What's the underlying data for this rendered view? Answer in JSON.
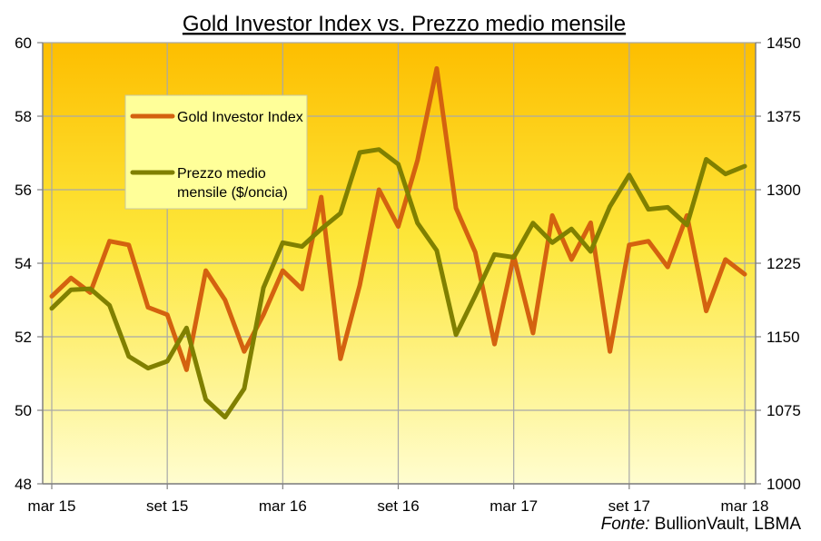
{
  "chart_data": {
    "type": "line",
    "title": "Gold Investor Index vs. Prezzo medio mensile",
    "source_label": "Fonte:",
    "source_text": "BullionVault, LBMA",
    "x": [
      "mar 15",
      "apr 15",
      "mag 15",
      "giu 15",
      "lug 15",
      "ago 15",
      "set 15",
      "ott 15",
      "nov 15",
      "dic 15",
      "gen 16",
      "feb 16",
      "mar 16",
      "apr 16",
      "mag 16",
      "giu 16",
      "lug 16",
      "ago 16",
      "set 16",
      "ott 16",
      "nov 16",
      "dic 16",
      "gen 17",
      "feb 17",
      "mar 17",
      "apr 17",
      "mag 17",
      "giu 17",
      "lug 17",
      "ago 17",
      "set 17",
      "ott 17",
      "nov 17",
      "dic 17",
      "gen 18",
      "feb 18",
      "mar 18"
    ],
    "x_tick_labels": [
      "mar 15",
      "set 15",
      "mar 16",
      "set 16",
      "mar 17",
      "set 17",
      "mar 18"
    ],
    "y_left": {
      "ylim": [
        48,
        60
      ],
      "ticks": [
        48,
        50,
        52,
        54,
        56,
        58,
        60
      ]
    },
    "y_right": {
      "ylim": [
        1000,
        1450
      ],
      "ticks": [
        1000,
        1075,
        1150,
        1225,
        1300,
        1375,
        1450
      ]
    },
    "grid": true,
    "legend_position": "top-left",
    "series": [
      {
        "name": "Gold Investor Index",
        "axis": "left",
        "color": "#d4620f",
        "values": [
          53.1,
          53.6,
          53.2,
          54.6,
          54.5,
          52.8,
          52.6,
          51.1,
          53.8,
          53.0,
          51.6,
          52.6,
          53.8,
          53.3,
          55.8,
          51.4,
          53.4,
          56.0,
          55.0,
          56.8,
          59.3,
          55.5,
          54.3,
          51.8,
          54.2,
          52.1,
          55.3,
          54.1,
          55.1,
          51.6,
          54.5,
          54.6,
          53.9,
          55.3,
          52.7,
          54.1,
          53.7
        ]
      },
      {
        "name": "Prezzo medio mensile ($/oncia)",
        "axis": "right",
        "color": "#808000",
        "values": [
          1179,
          1198,
          1199,
          1182,
          1130,
          1118,
          1125,
          1159,
          1086,
          1068,
          1097,
          1200,
          1246,
          1242,
          1260,
          1276,
          1338,
          1341,
          1326,
          1266,
          1238,
          1152,
          1192,
          1234,
          1231,
          1266,
          1246,
          1260,
          1237,
          1283,
          1315,
          1280,
          1282,
          1264,
          1331,
          1316,
          1324
        ]
      }
    ]
  }
}
